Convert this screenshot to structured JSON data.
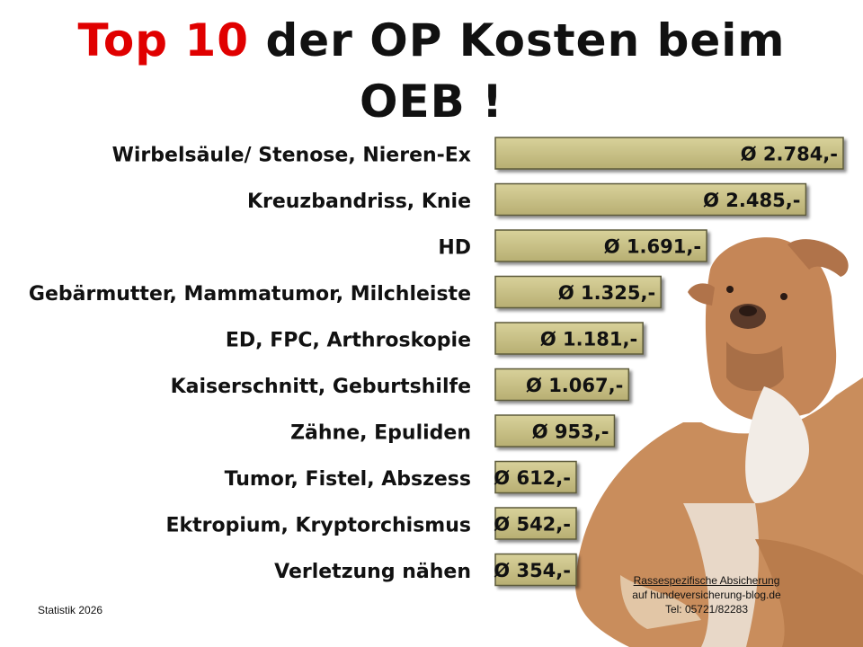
{
  "title": {
    "accent_text": "Top 10",
    "rest_line1": " der OP Kosten beim",
    "line2": "OEB !"
  },
  "colors": {
    "title_accent": "#e00000",
    "bar_fill": "#c6bf86",
    "bar_border": "#5c5a3a",
    "text": "#111111"
  },
  "chart_data": {
    "type": "bar",
    "orientation": "horizontal",
    "categories": [
      "Wirbelsäule/ Stenose, Nieren-Ex",
      "Kreuzbandriss, Knie",
      "HD",
      "Gebärmutter, Mammatumor, Milchleiste",
      "ED, FPC, Arthroskopie",
      "Kaiserschnitt, Geburtshilfe",
      "Zähne, Epuliden",
      "Tumor, Fistel, Abszess",
      "Ektropium, Kryptorchismus",
      "Verletzung nähen"
    ],
    "values": [
      2784,
      2485,
      1691,
      1325,
      1181,
      1067,
      953,
      612,
      542,
      354
    ],
    "value_labels": [
      "Ø 2.784,-",
      "Ø 2.485,-",
      "Ø 1.691,-",
      "Ø 1.325,-",
      "Ø 1.181,-",
      "Ø 1.067,-",
      "Ø 953,-",
      "Ø 612,-",
      "Ø 542,-",
      "Ø 354,-"
    ],
    "title": "Top 10 der OP Kosten beim OEB !",
    "xlabel": "",
    "ylabel": "",
    "grid": false,
    "legend": "none"
  },
  "image": {
    "name": "Old English Bulldog"
  },
  "footer": {
    "left": "Statistik 2026",
    "right_line1": "Rassespezifische Absicherung",
    "right_line2": "auf hundeversicherung-blog.de",
    "right_line3": "Tel: 05721/82283"
  }
}
